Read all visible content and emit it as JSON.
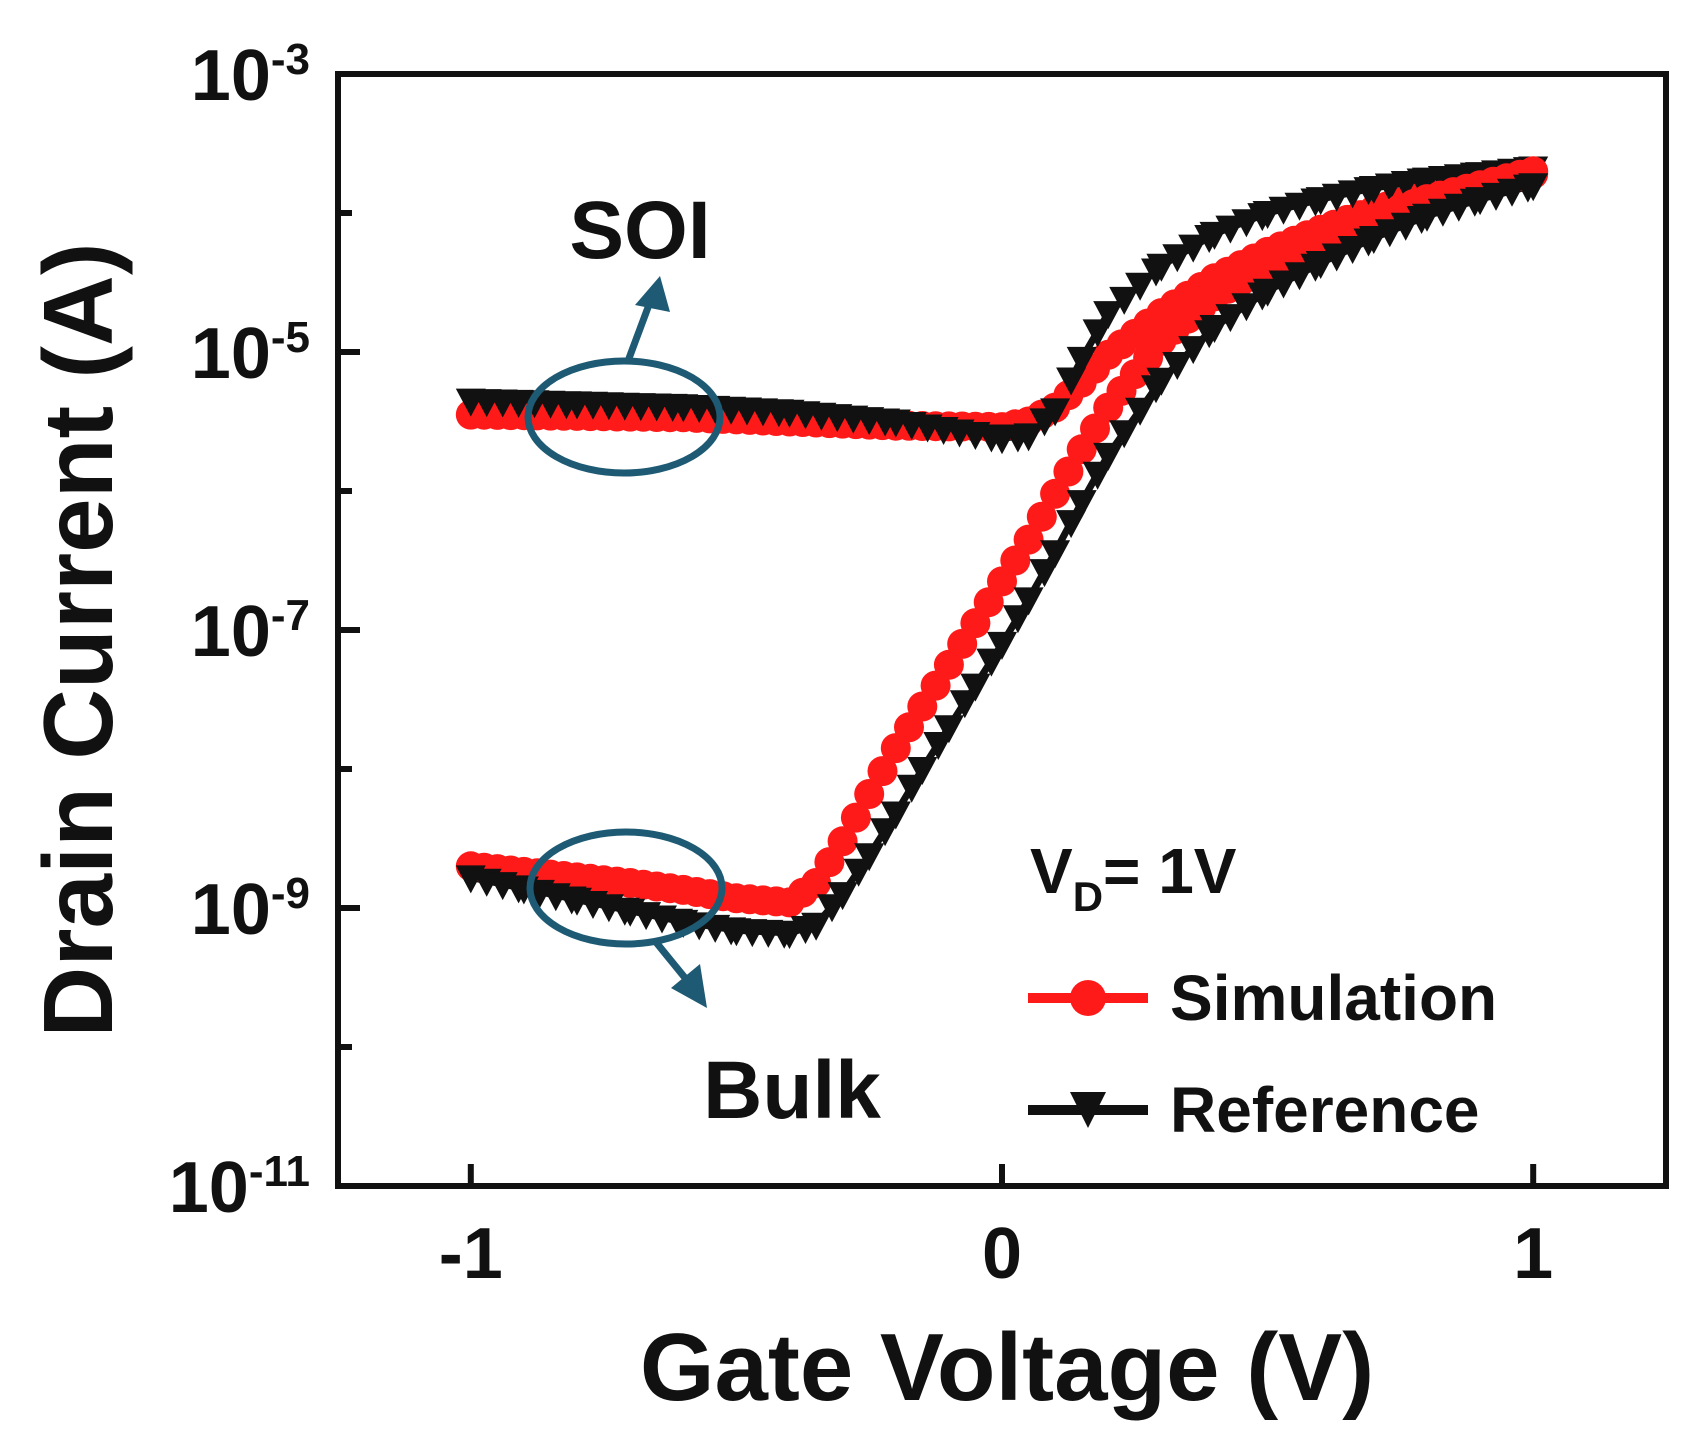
{
  "chart_data": {
    "type": "line",
    "title": "",
    "xlabel": "Gate Voltage (V)",
    "ylabel": "Drain Current (A)",
    "xlim": [
      -1.25,
      1.25
    ],
    "ylim_log10": [
      -11,
      -3
    ],
    "yscale": "log",
    "x_ticks": [
      {
        "value": -1,
        "label": "-1"
      },
      {
        "value": 0,
        "label": "0"
      },
      {
        "value": 1,
        "label": "1"
      }
    ],
    "y_ticks": [
      {
        "exp": -3,
        "base": "10",
        "sup": "-3"
      },
      {
        "exp": -5,
        "base": "10",
        "sup": "-5"
      },
      {
        "exp": -7,
        "base": "10",
        "sup": "-7"
      },
      {
        "exp": -9,
        "base": "10",
        "sup": "-9"
      },
      {
        "exp": -11,
        "base": "10",
        "sup": "-11"
      }
    ],
    "y_minor_ticks": [
      -4,
      -6,
      -8,
      -10
    ],
    "condition": {
      "prefix": "V",
      "sub": "D",
      "suffix": "= 1V"
    },
    "colors": {
      "simulation": "#ff1a1a",
      "reference": "#111111",
      "annotation": "#1e5a73",
      "axis": "#111111"
    },
    "legend": {
      "position": "bottom-right",
      "entries": [
        {
          "label": "Simulation",
          "series": "simulation",
          "marker": "circle"
        },
        {
          "label": "Reference",
          "series": "reference",
          "marker": "triangle-down"
        }
      ]
    },
    "annotations": [
      {
        "label": "SOI",
        "group": "SOI"
      },
      {
        "label": "Bulk",
        "group": "Bulk"
      }
    ],
    "series": [
      {
        "name": "SOI Simulation",
        "group": "SOI",
        "kind": "simulation",
        "x": [
          -1.0,
          -0.8,
          -0.6,
          -0.4,
          -0.2,
          0.0,
          0.05,
          0.1,
          0.15,
          0.2,
          0.3,
          0.4,
          0.5,
          0.6,
          0.7,
          0.8,
          0.9,
          1.0
        ],
        "log10_y": [
          -5.45,
          -5.46,
          -5.47,
          -5.5,
          -5.53,
          -5.54,
          -5.5,
          -5.4,
          -5.22,
          -5.02,
          -4.72,
          -4.47,
          -4.28,
          -4.12,
          -3.98,
          -3.87,
          -3.78,
          -3.72
        ]
      },
      {
        "name": "SOI Reference",
        "group": "SOI",
        "kind": "reference",
        "x": [
          -1.0,
          -0.8,
          -0.6,
          -0.4,
          -0.2,
          0.0,
          0.05,
          0.1,
          0.15,
          0.2,
          0.3,
          0.4,
          0.5,
          0.6,
          0.7,
          0.8,
          0.9,
          1.0
        ],
        "log10_y": [
          -5.35,
          -5.37,
          -5.39,
          -5.43,
          -5.5,
          -5.62,
          -5.6,
          -5.42,
          -5.05,
          -4.72,
          -4.38,
          -4.15,
          -4.0,
          -3.9,
          -3.82,
          -3.76,
          -3.72,
          -3.68
        ]
      },
      {
        "name": "Bulk Simulation",
        "group": "Bulk",
        "kind": "simulation",
        "x": [
          -1.0,
          -0.9,
          -0.8,
          -0.7,
          -0.6,
          -0.5,
          -0.4,
          -0.35,
          -0.3,
          -0.25,
          -0.2,
          -0.15,
          -0.1,
          -0.05,
          0.0,
          0.05,
          0.1,
          0.15,
          0.2,
          0.3,
          0.4,
          0.5,
          0.6,
          0.7,
          0.8,
          0.9,
          1.0
        ],
        "log10_y": [
          -8.7,
          -8.74,
          -8.78,
          -8.82,
          -8.87,
          -8.93,
          -8.96,
          -8.82,
          -8.52,
          -8.18,
          -7.85,
          -7.55,
          -7.25,
          -6.95,
          -6.65,
          -6.35,
          -6.02,
          -5.7,
          -5.4,
          -4.92,
          -4.6,
          -4.38,
          -4.2,
          -4.04,
          -3.9,
          -3.8,
          -3.7
        ]
      },
      {
        "name": "Bulk Reference",
        "group": "Bulk",
        "kind": "reference",
        "x": [
          -1.0,
          -0.9,
          -0.8,
          -0.7,
          -0.6,
          -0.5,
          -0.4,
          -0.35,
          -0.3,
          -0.25,
          -0.2,
          -0.15,
          -0.1,
          -0.05,
          0.0,
          0.05,
          0.1,
          0.15,
          0.2,
          0.3,
          0.4,
          0.5,
          0.6,
          0.7,
          0.8,
          0.9,
          1.0
        ],
        "log10_y": [
          -8.78,
          -8.86,
          -8.94,
          -9.02,
          -9.1,
          -9.16,
          -9.18,
          -9.12,
          -8.9,
          -8.62,
          -8.32,
          -8.0,
          -7.7,
          -7.4,
          -7.1,
          -6.78,
          -6.44,
          -6.08,
          -5.74,
          -5.2,
          -4.82,
          -4.56,
          -4.36,
          -4.18,
          -4.02,
          -3.9,
          -3.8
        ]
      }
    ]
  }
}
